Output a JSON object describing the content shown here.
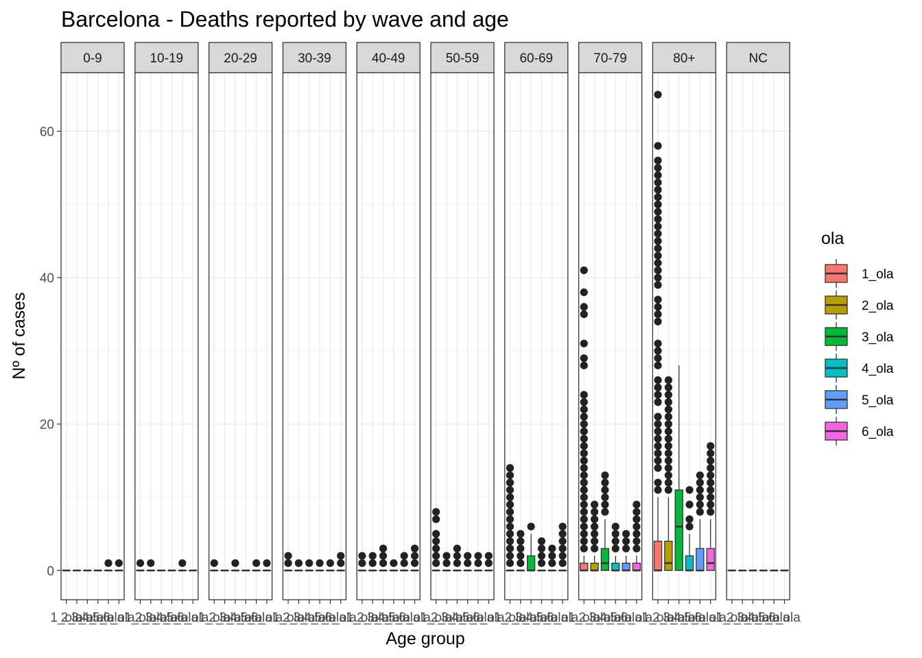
{
  "colors": {
    "1_ola": "#F8766D",
    "2_ola": "#B79F00",
    "3_ola": "#00BA38",
    "4_ola": "#00BFC4",
    "5_ola": "#619CFF",
    "6_ola": "#F564E3",
    "strip_bg": "#d9d9d9",
    "grid": "#ebebeb",
    "point": "#222222"
  },
  "chart_data": {
    "type": "boxplot",
    "title": "Barcelona - Deaths reported by wave and age",
    "xlabel": "Age group",
    "ylabel": "Nº of cases",
    "ylim": [
      -4,
      68
    ],
    "yticks": [
      0,
      20,
      40,
      60
    ],
    "grid": true,
    "legend": {
      "title": "ola",
      "position": "right",
      "entries": [
        "1_ola",
        "2_ola",
        "3_ola",
        "4_ola",
        "5_ola",
        "6_ola"
      ]
    },
    "categories": [
      "1_ola",
      "2_ola",
      "3_ola",
      "4_ola",
      "5_ola",
      "6_ola"
    ],
    "panels": [
      {
        "label": "0-9",
        "boxes": [
          {
            "q1": 0,
            "med": 0,
            "q3": 0,
            "lo": 0,
            "hi": 0,
            "out": []
          },
          {
            "q1": 0,
            "med": 0,
            "q3": 0,
            "lo": 0,
            "hi": 0,
            "out": []
          },
          {
            "q1": 0,
            "med": 0,
            "q3": 0,
            "lo": 0,
            "hi": 0,
            "out": []
          },
          {
            "q1": 0,
            "med": 0,
            "q3": 0,
            "lo": 0,
            "hi": 0,
            "out": []
          },
          {
            "q1": 0,
            "med": 0,
            "q3": 0,
            "lo": 0,
            "hi": 0,
            "out": [
              1
            ]
          },
          {
            "q1": 0,
            "med": 0,
            "q3": 0,
            "lo": 0,
            "hi": 0,
            "out": [
              1
            ]
          }
        ]
      },
      {
        "label": "10-19",
        "boxes": [
          {
            "q1": 0,
            "med": 0,
            "q3": 0,
            "lo": 0,
            "hi": 0,
            "out": [
              1
            ]
          },
          {
            "q1": 0,
            "med": 0,
            "q3": 0,
            "lo": 0,
            "hi": 0,
            "out": [
              1
            ]
          },
          {
            "q1": 0,
            "med": 0,
            "q3": 0,
            "lo": 0,
            "hi": 0,
            "out": []
          },
          {
            "q1": 0,
            "med": 0,
            "q3": 0,
            "lo": 0,
            "hi": 0,
            "out": []
          },
          {
            "q1": 0,
            "med": 0,
            "q3": 0,
            "lo": 0,
            "hi": 0,
            "out": [
              1
            ]
          },
          {
            "q1": 0,
            "med": 0,
            "q3": 0,
            "lo": 0,
            "hi": 0,
            "out": []
          }
        ]
      },
      {
        "label": "20-29",
        "boxes": [
          {
            "q1": 0,
            "med": 0,
            "q3": 0,
            "lo": 0,
            "hi": 0,
            "out": [
              1
            ]
          },
          {
            "q1": 0,
            "med": 0,
            "q3": 0,
            "lo": 0,
            "hi": 0,
            "out": []
          },
          {
            "q1": 0,
            "med": 0,
            "q3": 0,
            "lo": 0,
            "hi": 0,
            "out": [
              1
            ]
          },
          {
            "q1": 0,
            "med": 0,
            "q3": 0,
            "lo": 0,
            "hi": 0,
            "out": []
          },
          {
            "q1": 0,
            "med": 0,
            "q3": 0,
            "lo": 0,
            "hi": 0,
            "out": [
              1
            ]
          },
          {
            "q1": 0,
            "med": 0,
            "q3": 0,
            "lo": 0,
            "hi": 0,
            "out": [
              1
            ]
          }
        ]
      },
      {
        "label": "30-39",
        "boxes": [
          {
            "q1": 0,
            "med": 0,
            "q3": 0,
            "lo": 0,
            "hi": 0,
            "out": [
              1,
              2
            ]
          },
          {
            "q1": 0,
            "med": 0,
            "q3": 0,
            "lo": 0,
            "hi": 0,
            "out": [
              1
            ]
          },
          {
            "q1": 0,
            "med": 0,
            "q3": 0,
            "lo": 0,
            "hi": 0,
            "out": [
              1
            ]
          },
          {
            "q1": 0,
            "med": 0,
            "q3": 0,
            "lo": 0,
            "hi": 0,
            "out": [
              1
            ]
          },
          {
            "q1": 0,
            "med": 0,
            "q3": 0,
            "lo": 0,
            "hi": 0,
            "out": [
              1
            ]
          },
          {
            "q1": 0,
            "med": 0,
            "q3": 0,
            "lo": 0,
            "hi": 0,
            "out": [
              1,
              2
            ]
          }
        ]
      },
      {
        "label": "40-49",
        "boxes": [
          {
            "q1": 0,
            "med": 0,
            "q3": 0,
            "lo": 0,
            "hi": 0,
            "out": [
              1,
              2
            ]
          },
          {
            "q1": 0,
            "med": 0,
            "q3": 0,
            "lo": 0,
            "hi": 0,
            "out": [
              1,
              2
            ]
          },
          {
            "q1": 0,
            "med": 0,
            "q3": 0,
            "lo": 0,
            "hi": 0,
            "out": [
              1,
              2,
              3
            ]
          },
          {
            "q1": 0,
            "med": 0,
            "q3": 0,
            "lo": 0,
            "hi": 0,
            "out": [
              1
            ]
          },
          {
            "q1": 0,
            "med": 0,
            "q3": 0,
            "lo": 0,
            "hi": 0,
            "out": [
              1,
              2
            ]
          },
          {
            "q1": 0,
            "med": 0,
            "q3": 0,
            "lo": 0,
            "hi": 0,
            "out": [
              1,
              2,
              3
            ]
          }
        ]
      },
      {
        "label": "50-59",
        "boxes": [
          {
            "q1": 0,
            "med": 0,
            "q3": 0,
            "lo": 0,
            "hi": 0,
            "out": [
              1,
              2,
              3,
              4,
              5,
              7,
              8
            ]
          },
          {
            "q1": 0,
            "med": 0,
            "q3": 0,
            "lo": 0,
            "hi": 0,
            "out": [
              1,
              2
            ]
          },
          {
            "q1": 0,
            "med": 0,
            "q3": 0,
            "lo": 0,
            "hi": 0,
            "out": [
              1,
              2,
              3
            ]
          },
          {
            "q1": 0,
            "med": 0,
            "q3": 0,
            "lo": 0,
            "hi": 0,
            "out": [
              1,
              2
            ]
          },
          {
            "q1": 0,
            "med": 0,
            "q3": 0,
            "lo": 0,
            "hi": 0,
            "out": [
              1,
              2
            ]
          },
          {
            "q1": 0,
            "med": 0,
            "q3": 0,
            "lo": 0,
            "hi": 0,
            "out": [
              1,
              2
            ]
          }
        ]
      },
      {
        "label": "60-69",
        "boxes": [
          {
            "q1": 0,
            "med": 0,
            "q3": 0,
            "lo": 0,
            "hi": 0,
            "out": [
              1,
              2,
              3,
              4,
              5,
              6,
              7,
              8,
              9,
              10,
              11,
              12,
              13,
              14
            ]
          },
          {
            "q1": 0,
            "med": 0,
            "q3": 0,
            "lo": 0,
            "hi": 0,
            "out": [
              1,
              2,
              3,
              4,
              5
            ]
          },
          {
            "q1": 0,
            "med": 0,
            "q3": 2,
            "lo": 0,
            "hi": 5,
            "out": [
              6
            ]
          },
          {
            "q1": 0,
            "med": 0,
            "q3": 0,
            "lo": 0,
            "hi": 0,
            "out": [
              1,
              2,
              3,
              4
            ]
          },
          {
            "q1": 0,
            "med": 0,
            "q3": 0,
            "lo": 0,
            "hi": 0,
            "out": [
              1,
              2,
              3
            ]
          },
          {
            "q1": 0,
            "med": 0,
            "q3": 0,
            "lo": 0,
            "hi": 0,
            "out": [
              1,
              2,
              3,
              4,
              5,
              6
            ]
          }
        ]
      },
      {
        "label": "70-79",
        "boxes": [
          {
            "q1": 0,
            "med": 0,
            "q3": 1,
            "lo": 0,
            "hi": 2,
            "out": [
              3,
              4,
              5,
              6,
              7,
              8,
              9,
              10,
              11,
              12,
              13,
              14,
              15,
              16,
              17,
              18,
              19,
              20,
              21,
              22,
              23,
              24,
              28,
              29,
              31,
              35,
              36,
              38,
              41
            ]
          },
          {
            "q1": 0,
            "med": 0,
            "q3": 1,
            "lo": 0,
            "hi": 2,
            "out": [
              3,
              4,
              5,
              6,
              7,
              8,
              9
            ]
          },
          {
            "q1": 0,
            "med": 1,
            "q3": 3,
            "lo": 0,
            "hi": 7,
            "out": [
              8,
              9,
              10,
              11,
              12,
              13
            ]
          },
          {
            "q1": 0,
            "med": 0,
            "q3": 1,
            "lo": 0,
            "hi": 2,
            "out": [
              3,
              4,
              5,
              6
            ]
          },
          {
            "q1": 0,
            "med": 0,
            "q3": 1,
            "lo": 0,
            "hi": 2,
            "out": [
              3,
              4,
              5
            ]
          },
          {
            "q1": 0,
            "med": 0,
            "q3": 1,
            "lo": 0,
            "hi": 2,
            "out": [
              3,
              4,
              5,
              6,
              7,
              8,
              9
            ]
          }
        ]
      },
      {
        "label": "80+",
        "boxes": [
          {
            "q1": 0,
            "med": 0,
            "q3": 4,
            "lo": 0,
            "hi": 10,
            "out": [
              11,
              12,
              14,
              15,
              16,
              17,
              18,
              19,
              20,
              21,
              23,
              24,
              25,
              26,
              28,
              29,
              30,
              31,
              34,
              35,
              36,
              37,
              39,
              40,
              41,
              42,
              43,
              44,
              45,
              46,
              47,
              48,
              49,
              50,
              51,
              52,
              53,
              54,
              55,
              56,
              58,
              65
            ]
          },
          {
            "q1": 0,
            "med": 1,
            "q3": 4,
            "lo": 0,
            "hi": 10,
            "out": [
              11,
              12,
              13,
              14,
              15,
              16,
              17,
              18,
              19,
              20,
              21,
              22,
              23,
              24,
              25,
              26
            ]
          },
          {
            "q1": 0,
            "med": 6,
            "q3": 11,
            "lo": 0,
            "hi": 28,
            "out": []
          },
          {
            "q1": 0,
            "med": 0,
            "q3": 2,
            "lo": 0,
            "hi": 5,
            "out": [
              6,
              7,
              9,
              11
            ]
          },
          {
            "q1": 0,
            "med": 0,
            "q3": 3,
            "lo": 0,
            "hi": 7,
            "out": [
              8,
              9,
              10,
              11,
              12,
              13
            ]
          },
          {
            "q1": 0,
            "med": 1,
            "q3": 3,
            "lo": 0,
            "hi": 7,
            "out": [
              8,
              9,
              10,
              11,
              12,
              13,
              14,
              15,
              16,
              17
            ]
          }
        ]
      },
      {
        "label": "NC",
        "boxes": [
          {
            "q1": 0,
            "med": 0,
            "q3": 0,
            "lo": 0,
            "hi": 0,
            "out": []
          },
          {
            "q1": 0,
            "med": 0,
            "q3": 0,
            "lo": 0,
            "hi": 0,
            "out": []
          },
          {
            "q1": 0,
            "med": 0,
            "q3": 0,
            "lo": 0,
            "hi": 0,
            "out": []
          },
          {
            "q1": 0,
            "med": 0,
            "q3": 0,
            "lo": 0,
            "hi": 0,
            "out": []
          },
          {
            "q1": 0,
            "med": 0,
            "q3": 0,
            "lo": 0,
            "hi": 0,
            "out": []
          },
          {
            "q1": 0,
            "med": 0,
            "q3": 0,
            "lo": 0,
            "hi": 0,
            "out": []
          }
        ]
      }
    ]
  }
}
